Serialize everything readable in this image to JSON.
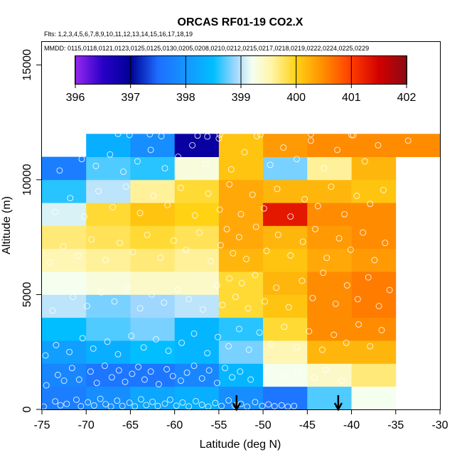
{
  "chart_data": {
    "type": "heatmap",
    "title": "ORCAS RF01-19 CO2.X",
    "flights_text": "Flts: 1,2,3,4,5,6,7,8,9,10,11,12,13,14,15,16,17,18,19",
    "dates_text": "MMDD: 0115,0118,0121,0123,0125,0125,0130,0205,0208,0210,0212,0215,0217,0218,0219,0222,0224,0225,0229",
    "xlabel": "Latitude (deg N)",
    "ylabel": "Altitude (m)",
    "xlim": [
      -75,
      -30
    ],
    "ylim": [
      0,
      16000
    ],
    "x_ticks": [
      "-75",
      "-70",
      "-65",
      "-60",
      "-55",
      "-50",
      "-45",
      "-40",
      "-35",
      "-30"
    ],
    "y_ticks": [
      "0",
      "5000",
      "10000",
      "15000"
    ],
    "colorbar": {
      "min": 396,
      "max": 402,
      "tick_labels": [
        "396",
        "397",
        "398",
        "399",
        "400",
        "401",
        "402"
      ]
    },
    "lat_bins": [
      -75,
      -70,
      -65,
      -60,
      -55,
      -50,
      -45,
      -40,
      -35
    ],
    "alt_bins": [
      0,
      1000,
      2000,
      3000,
      4000,
      5000,
      6000,
      7000,
      8000,
      9000,
      10000,
      11000
    ],
    "cells_co2": [
      [
        397.7,
        397.9,
        398.2,
        398.3,
        397.9,
        397.6,
        398.7,
        399.2
      ],
      [
        397.8,
        397.6,
        397.6,
        397.8,
        398.4,
        399.2,
        399.4,
        399.7
      ],
      [
        398.1,
        398.3,
        398.5,
        398.4,
        398.8,
        399.5,
        400.2,
        400.2
      ],
      [
        398.5,
        398.7,
        398.8,
        398.4,
        398.6,
        399.9,
        400.5,
        400.5
      ],
      [
        399.0,
        398.8,
        398.9,
        399.0,
        399.9,
        400.1,
        400.5,
        400.6
      ],
      [
        399.2,
        399.3,
        399.4,
        399.4,
        399.9,
        400.2,
        400.5,
        400.6
      ],
      [
        399.5,
        399.6,
        399.7,
        399.6,
        400.2,
        400.1,
        400.3,
        400.4
      ],
      [
        399.7,
        399.8,
        399.9,
        399.8,
        400.3,
        400.2,
        400.4,
        400.5
      ],
      [
        399.1,
        399.9,
        400.1,
        400.0,
        400.3,
        401.3,
        400.5,
        400.5
      ],
      [
        398.6,
        399.0,
        399.6,
        399.9,
        400.3,
        400.2,
        400.2,
        400.1
      ],
      [
        397.7,
        398.7,
        398.6,
        399.3,
        400.1,
        398.8,
        399.6,
        400.2
      ],
      [
        null,
        398.3,
        397.9,
        396.9,
        400.1,
        400.4,
        400.5,
        400.5,
        400.5
      ]
    ],
    "top_row_extends_to": -30,
    "arrows_lat": [
      -53,
      -41.5
    ],
    "flight_points": [
      [
        -74.8,
        120
      ],
      [
        -73.5,
        350
      ],
      [
        -72.9,
        180
      ],
      [
        -72.2,
        240
      ],
      [
        -71.1,
        420
      ],
      [
        -70.6,
        140
      ],
      [
        -69.8,
        310
      ],
      [
        -69.1,
        170
      ],
      [
        -68.4,
        460
      ],
      [
        -67.8,
        230
      ],
      [
        -67.2,
        120
      ],
      [
        -66.5,
        380
      ],
      [
        -65.9,
        150
      ],
      [
        -65.1,
        290
      ],
      [
        -64.5,
        130
      ],
      [
        -63.8,
        440
      ],
      [
        -63.2,
        190
      ],
      [
        -62.5,
        330
      ],
      [
        -61.9,
        150
      ],
      [
        -61.1,
        250
      ],
      [
        -60.5,
        420
      ],
      [
        -59.8,
        160
      ],
      [
        -59.1,
        300
      ],
      [
        -58.4,
        130
      ],
      [
        -57.6,
        360
      ],
      [
        -56.9,
        200
      ],
      [
        -56.2,
        120
      ],
      [
        -55.4,
        280
      ],
      [
        -54.7,
        150
      ],
      [
        -53.9,
        390
      ],
      [
        -53.2,
        170
      ],
      [
        -52.5,
        240
      ],
      [
        -51.8,
        120
      ],
      [
        -50.9,
        320
      ],
      [
        -50.1,
        150
      ],
      [
        -49.4,
        220
      ],
      [
        -48.7,
        140
      ],
      [
        -47.9,
        180
      ],
      [
        -47.2,
        120
      ],
      [
        -46.5,
        150
      ],
      [
        -74.5,
        1050
      ],
      [
        -73.2,
        1500
      ],
      [
        -72.5,
        1250
      ],
      [
        -71.6,
        1800
      ],
      [
        -70.8,
        1300
      ],
      [
        -69.5,
        1650
      ],
      [
        -68.8,
        1150
      ],
      [
        -67.9,
        1900
      ],
      [
        -67.1,
        1400
      ],
      [
        -66.3,
        1700
      ],
      [
        -65.6,
        1200
      ],
      [
        -64.8,
        1550
      ],
      [
        -64.1,
        1850
      ],
      [
        -63.4,
        1300
      ],
      [
        -62.7,
        1650
      ],
      [
        -61.8,
        1100
      ],
      [
        -60.9,
        1750
      ],
      [
        -60.2,
        1450
      ],
      [
        -59.3,
        1250
      ],
      [
        -58.6,
        1600
      ],
      [
        -57.8,
        1900
      ],
      [
        -56.9,
        1350
      ],
      [
        -56.1,
        1700
      ],
      [
        -55.2,
        1150
      ],
      [
        -54.3,
        1800
      ],
      [
        -53.5,
        1400
      ],
      [
        -52.6,
        1650
      ],
      [
        -51.4,
        1300
      ],
      [
        -49.6,
        1600
      ],
      [
        -47.8,
        1450
      ],
      [
        -46.1,
        1550
      ],
      [
        -44.2,
        1380
      ],
      [
        -42.9,
        1720
      ],
      [
        -41.1,
        1250
      ],
      [
        -74.6,
        2350
      ],
      [
        -73.4,
        2800
      ],
      [
        -71.9,
        2500
      ],
      [
        -70.4,
        3100
      ],
      [
        -69.2,
        2650
      ],
      [
        -67.6,
        2950
      ],
      [
        -66.4,
        2400
      ],
      [
        -64.9,
        3200
      ],
      [
        -63.5,
        2700
      ],
      [
        -62.1,
        3050
      ],
      [
        -60.7,
        2550
      ],
      [
        -59.2,
        2900
      ],
      [
        -57.8,
        3300
      ],
      [
        -56.3,
        2450
      ],
      [
        -55.1,
        3150
      ],
      [
        -53.9,
        2750
      ],
      [
        -52.7,
        3500
      ],
      [
        -51.6,
        2600
      ],
      [
        -50.4,
        3350
      ],
      [
        -49.1,
        2850
      ],
      [
        -47.6,
        3600
      ],
      [
        -46.2,
        2700
      ],
      [
        -44.8,
        3400
      ],
      [
        -43.3,
        2600
      ],
      [
        -42.0,
        3250
      ],
      [
        -40.6,
        2900
      ],
      [
        -39.2,
        3700
      ],
      [
        -37.9,
        2750
      ],
      [
        -36.6,
        3450
      ],
      [
        -73.8,
        4300
      ],
      [
        -71.5,
        4900
      ],
      [
        -69.9,
        4500
      ],
      [
        -68.3,
        5100
      ],
      [
        -66.8,
        4700
      ],
      [
        -65.4,
        5300
      ],
      [
        -63.9,
        4400
      ],
      [
        -62.6,
        5000
      ],
      [
        -61.2,
        4650
      ],
      [
        -59.7,
        5200
      ],
      [
        -58.4,
        4800
      ],
      [
        -56.8,
        4350
      ],
      [
        -55.2,
        5400
      ],
      [
        -54.6,
        4550
      ],
      [
        -53.8,
        5700
      ],
      [
        -53.1,
        4900
      ],
      [
        -52.4,
        5500
      ],
      [
        -51.7,
        4400
      ],
      [
        -50.9,
        5850
      ],
      [
        -49.8,
        4700
      ],
      [
        -48.5,
        5300
      ],
      [
        -47.1,
        4450
      ],
      [
        -45.6,
        5600
      ],
      [
        -44.4,
        4850
      ],
      [
        -43.2,
        5950
      ],
      [
        -41.8,
        4600
      ],
      [
        -40.5,
        5400
      ],
      [
        -39.3,
        4800
      ],
      [
        -38.1,
        5750
      ],
      [
        -36.9,
        4500
      ],
      [
        -35.7,
        5200
      ],
      [
        -74.1,
        6400
      ],
      [
        -72.6,
        7100
      ],
      [
        -70.9,
        6700
      ],
      [
        -69.4,
        7400
      ],
      [
        -67.8,
        6500
      ],
      [
        -66.2,
        7250
      ],
      [
        -64.7,
        6850
      ],
      [
        -63.1,
        7600
      ],
      [
        -61.6,
        6600
      ],
      [
        -60.1,
        7350
      ],
      [
        -58.7,
        6950
      ],
      [
        -57.2,
        7700
      ],
      [
        -55.9,
        6450
      ],
      [
        -54.8,
        7150
      ],
      [
        -54.1,
        7850
      ],
      [
        -53.4,
        6800
      ],
      [
        -52.7,
        7500
      ],
      [
        -51.9,
        6550
      ],
      [
        -50.8,
        7950
      ],
      [
        -49.6,
        6900
      ],
      [
        -48.3,
        7600
      ],
      [
        -46.9,
        6700
      ],
      [
        -45.5,
        7300
      ],
      [
        -44.1,
        7850
      ],
      [
        -42.8,
        6600
      ],
      [
        -41.4,
        7450
      ],
      [
        -40.1,
        6950
      ],
      [
        -38.7,
        7700
      ],
      [
        -37.4,
        6500
      ],
      [
        -36.2,
        7250
      ],
      [
        -73.5,
        8600
      ],
      [
        -71.8,
        9200
      ],
      [
        -70.2,
        8400
      ],
      [
        -68.6,
        9500
      ],
      [
        -67.0,
        8800
      ],
      [
        -65.5,
        9700
      ],
      [
        -63.9,
        8550
      ],
      [
        -62.4,
        9300
      ],
      [
        -60.8,
        8900
      ],
      [
        -59.3,
        9650
      ],
      [
        -57.7,
        8450
      ],
      [
        -56.2,
        9400
      ],
      [
        -54.9,
        8700
      ],
      [
        -53.8,
        9800
      ],
      [
        -52.5,
        8500
      ],
      [
        -51.2,
        9350
      ],
      [
        -49.9,
        8750
      ],
      [
        -48.4,
        9600
      ],
      [
        -46.9,
        8400
      ],
      [
        -45.3,
        9150
      ],
      [
        -43.8,
        8850
      ],
      [
        -42.3,
        9700
      ],
      [
        -40.8,
        8500
      ],
      [
        -39.4,
        9300
      ],
      [
        -37.9,
        8950
      ],
      [
        -36.4,
        9550
      ],
      [
        -73.0,
        10400
      ],
      [
        -70.5,
        10900
      ],
      [
        -68.9,
        10600
      ],
      [
        -67.3,
        11100
      ],
      [
        -65.8,
        10350
      ],
      [
        -64.2,
        10800
      ],
      [
        -62.7,
        11300
      ],
      [
        -61.1,
        10500
      ],
      [
        -59.6,
        11000
      ],
      [
        -58.0,
        11500
      ],
      [
        -56.5,
        10700
      ],
      [
        -55.0,
        11800
      ],
      [
        -53.6,
        10450
      ],
      [
        -52.1,
        11200
      ],
      [
        -50.7,
        11900
      ],
      [
        -49.2,
        10650
      ],
      [
        -47.7,
        11400
      ],
      [
        -46.2,
        10900
      ],
      [
        -44.6,
        11700
      ],
      [
        -43.1,
        10500
      ],
      [
        -41.6,
        11300
      ],
      [
        -40.0,
        11950
      ],
      [
        -38.5,
        10800
      ],
      [
        -37.0,
        11500
      ],
      [
        -66.4,
        12000
      ],
      [
        -65.1,
        11950
      ],
      [
        -62.8,
        11980
      ],
      [
        -61.5,
        11900
      ],
      [
        -57.4,
        11920
      ],
      [
        -56.3,
        11880
      ],
      [
        -54.9,
        11960
      ],
      [
        -50.3,
        11970
      ],
      [
        -44.6,
        11990
      ],
      [
        -39.8,
        11940
      ],
      [
        -33.6,
        11700
      ]
    ]
  }
}
